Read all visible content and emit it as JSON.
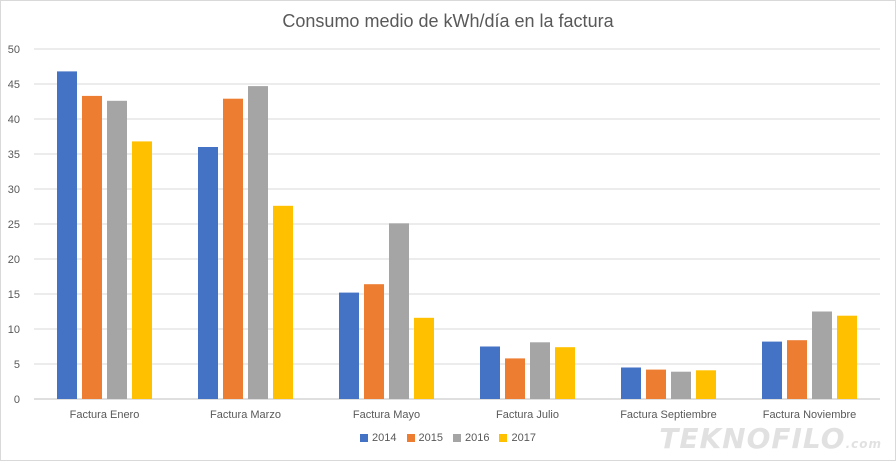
{
  "chart_data": {
    "type": "bar",
    "title": "Consumo medio de kWh/día en la factura",
    "categories": [
      "Factura Enero",
      "Factura Marzo",
      "Factura Mayo",
      "Factura Julio",
      "Factura Septiembre",
      "Factura Noviembre"
    ],
    "series": [
      {
        "name": "2014",
        "color": "#4472c4",
        "values": [
          46.8,
          36.0,
          15.2,
          7.5,
          4.5,
          8.2
        ]
      },
      {
        "name": "2015",
        "color": "#ed7d31",
        "values": [
          43.3,
          42.9,
          16.4,
          5.8,
          4.2,
          8.4
        ]
      },
      {
        "name": "2016",
        "color": "#a5a5a5",
        "values": [
          42.6,
          44.7,
          25.1,
          8.1,
          3.9,
          12.5
        ]
      },
      {
        "name": "2017",
        "color": "#ffc000",
        "values": [
          36.8,
          27.6,
          11.6,
          7.4,
          4.1,
          11.9
        ]
      }
    ],
    "ylim": [
      0,
      50
    ],
    "yticks": [
      0,
      5,
      10,
      15,
      20,
      25,
      30,
      35,
      40,
      45,
      50
    ],
    "grid": true,
    "legend_position": "bottom"
  },
  "watermark": {
    "text": "TEKNOFILO",
    "suffix": ".com"
  }
}
